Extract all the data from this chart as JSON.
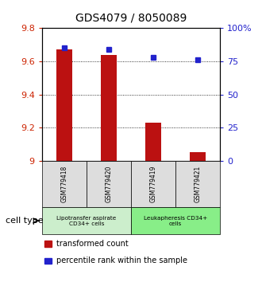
{
  "title": "GDS4079 / 8050089",
  "samples": [
    "GSM779418",
    "GSM779420",
    "GSM779419",
    "GSM779421"
  ],
  "transformed_counts": [
    9.67,
    9.64,
    9.23,
    9.05
  ],
  "percentile_ranks": [
    85,
    84,
    78,
    76
  ],
  "ylim_left": [
    9.0,
    9.8
  ],
  "ylim_right": [
    0,
    100
  ],
  "yticks_left": [
    9.0,
    9.2,
    9.4,
    9.6,
    9.8
  ],
  "yticks_right": [
    0,
    25,
    50,
    75,
    100
  ],
  "ytick_labels_left": [
    "9",
    "9.2",
    "9.4",
    "9.6",
    "9.8"
  ],
  "ytick_labels_right": [
    "0",
    "25",
    "50",
    "75",
    "100%"
  ],
  "bar_color": "#bb1111",
  "dot_color": "#2222cc",
  "groups": [
    {
      "label": "Lipotransfer aspirate\nCD34+ cells",
      "samples": [
        0,
        1
      ],
      "color": "#cceecc"
    },
    {
      "label": "Leukapheresis CD34+\ncells",
      "samples": [
        2,
        3
      ],
      "color": "#88ee88"
    }
  ],
  "cell_type_label": "cell type",
  "legend_items": [
    {
      "color": "#bb1111",
      "label": "transformed count"
    },
    {
      "color": "#2222cc",
      "label": "percentile rank within the sample"
    }
  ],
  "grid_color": "black",
  "bar_width": 0.35,
  "background_color": "#ffffff",
  "plot_bg_color": "#ffffff",
  "sample_box_color": "#dddddd"
}
